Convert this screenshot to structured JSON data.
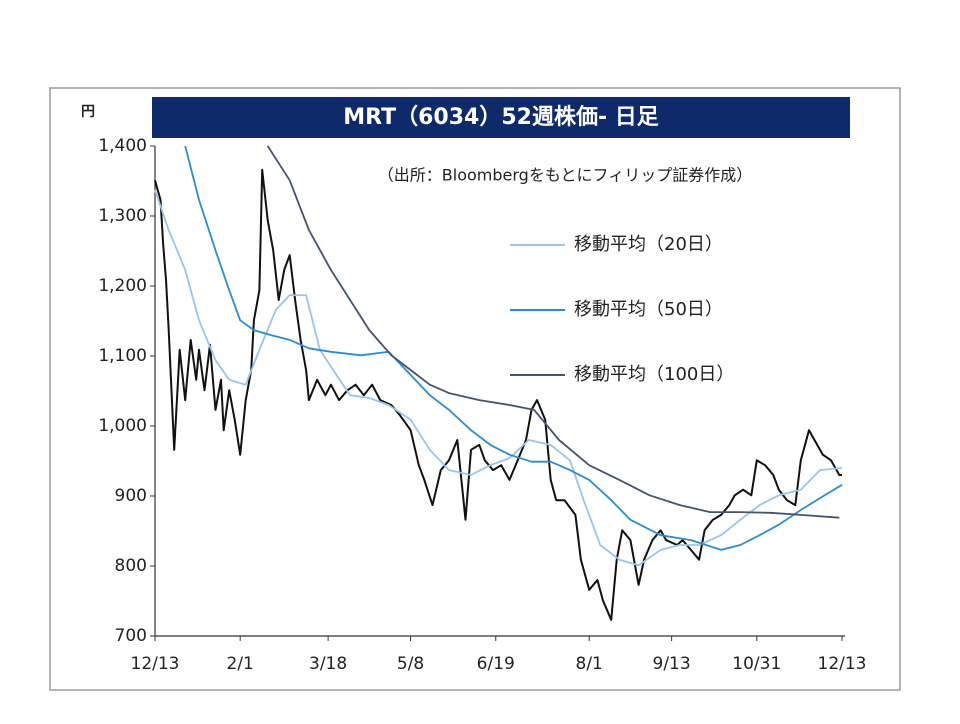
{
  "chart_data": {
    "type": "line",
    "title": "MRT（6034）52週株価- 日足",
    "y_unit": "円",
    "source": "（出所：Bloombergをもとにフィリップ証券作成）",
    "xlim": [
      0,
      250
    ],
    "xticks": [
      {
        "value": 0,
        "label": "12/13"
      },
      {
        "value": 31,
        "label": "2/1"
      },
      {
        "value": 63,
        "label": "3/18"
      },
      {
        "value": 93,
        "label": "5/8"
      },
      {
        "value": 124,
        "label": "6/19"
      },
      {
        "value": 158,
        "label": "8/1"
      },
      {
        "value": 188,
        "label": "9/13"
      },
      {
        "value": 219,
        "label": "10/31"
      },
      {
        "value": 250,
        "label": "12/13"
      }
    ],
    "ylim": [
      700,
      1400
    ],
    "yticks": [
      700,
      800,
      900,
      {
        "value": 1000,
        "label": "1,000"
      },
      {
        "value": 1100,
        "label": "1,100"
      },
      {
        "value": 1200,
        "label": "1,200"
      },
      {
        "value": 1300,
        "label": "1,300"
      },
      {
        "value": 1400,
        "label": "1,400"
      }
    ],
    "grid": false,
    "series": [
      {
        "color": "#111111",
        "x": [
          0,
          2,
          3,
          4,
          5,
          7,
          9,
          11,
          13,
          15,
          16,
          18,
          20,
          22,
          24,
          25,
          27,
          29,
          31,
          33,
          35,
          36,
          38,
          39,
          41,
          43,
          45,
          47,
          49,
          51,
          53,
          55,
          56,
          59,
          62,
          64,
          67,
          70,
          73,
          76,
          79,
          82,
          86,
          89,
          93,
          96,
          98,
          101,
          104,
          107,
          110,
          113,
          115,
          118,
          120,
          123,
          126,
          129,
          132,
          135,
          137,
          139,
          142,
          144,
          146,
          149,
          153,
          155,
          158,
          161,
          163,
          166,
          168,
          170,
          173,
          176,
          178,
          181,
          184,
          186,
          190,
          192,
          195,
          198,
          200,
          203,
          206,
          209,
          211,
          214,
          217,
          219,
          222,
          225,
          227,
          230,
          233,
          235,
          238,
          240,
          243,
          246,
          249,
          250
        ],
        "values": [
          1351,
          1323,
          1259,
          1209,
          1137,
          966,
          1109,
          1037,
          1123,
          1066,
          1109,
          1051,
          1116,
          1023,
          1066,
          994,
          1051,
          1009,
          959,
          1037,
          1080,
          1151,
          1194,
          1366,
          1294,
          1251,
          1180,
          1223,
          1244,
          1180,
          1123,
          1080,
          1037,
          1066,
          1044,
          1059,
          1037,
          1051,
          1059,
          1044,
          1059,
          1037,
          1030,
          1016,
          994,
          944,
          923,
          887,
          937,
          951,
          980,
          866,
          966,
          973,
          951,
          937,
          944,
          923,
          951,
          980,
          1023,
          1037,
          1009,
          923,
          894,
          894,
          873,
          809,
          766,
          780,
          751,
          723,
          809,
          851,
          837,
          773,
          809,
          837,
          851,
          837,
          830,
          837,
          823,
          809,
          851,
          866,
          873,
          887,
          901,
          909,
          901,
          951,
          944,
          930,
          909,
          894,
          887,
          951,
          994,
          980,
          959,
          951,
          930,
          930
        ]
      },
      {
        "name": "移動平均（20日）",
        "color": "#9dc3e6",
        "x": [
          0,
          5,
          11,
          16,
          22,
          27,
          33,
          38,
          44,
          49,
          55,
          60,
          66,
          71,
          78,
          85,
          93,
          100,
          107,
          115,
          122,
          129,
          136,
          144,
          151,
          156,
          162,
          169,
          176,
          184,
          191,
          198,
          206,
          213,
          220,
          227,
          235,
          242,
          250
        ],
        "values": [
          1337,
          1280,
          1223,
          1151,
          1094,
          1066,
          1059,
          1109,
          1166,
          1187,
          1187,
          1109,
          1073,
          1044,
          1040,
          1030,
          1009,
          966,
          937,
          930,
          944,
          954,
          980,
          973,
          951,
          894,
          830,
          809,
          801,
          823,
          830,
          830,
          844,
          866,
          887,
          901,
          909,
          937,
          940
        ]
      },
      {
        "name": "移動平均（50日）",
        "color": "#2e8bd0",
        "x": [
          11,
          16,
          22,
          27,
          31,
          36,
          42,
          49,
          56,
          64,
          75,
          85,
          93,
          100,
          107,
          115,
          122,
          129,
          137,
          144,
          151,
          158,
          166,
          173,
          184,
          195,
          206,
          213,
          220,
          227,
          235,
          242,
          250
        ],
        "values": [
          1400,
          1323,
          1251,
          1194,
          1151,
          1137,
          1130,
          1123,
          1111,
          1106,
          1101,
          1106,
          1073,
          1044,
          1023,
          994,
          973,
          959,
          949,
          949,
          937,
          923,
          894,
          866,
          844,
          837,
          823,
          830,
          844,
          859,
          880,
          897,
          916
        ]
      },
      {
        "name": "移動平均（100日）",
        "color": "#44546a",
        "x": [
          41,
          49,
          56,
          64,
          71,
          78,
          86,
          93,
          100,
          107,
          118,
          129,
          138,
          147,
          158,
          169,
          180,
          191,
          202,
          213,
          224,
          235,
          249
        ],
        "values": [
          1400,
          1351,
          1280,
          1223,
          1180,
          1137,
          1101,
          1080,
          1059,
          1047,
          1037,
          1030,
          1023,
          980,
          944,
          923,
          901,
          887,
          877,
          877,
          876,
          873,
          869
        ]
      }
    ]
  }
}
